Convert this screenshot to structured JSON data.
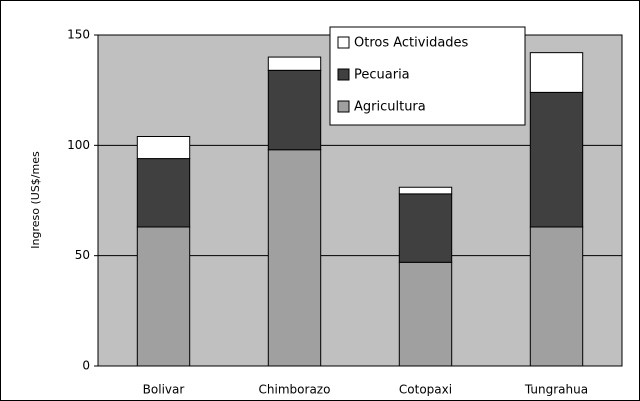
{
  "chart_data": {
    "type": "stacked_bar",
    "y_label": "Ingreso (US$/mes",
    "categories": [
      "Bolivar",
      "Chimborazo",
      "Cotopaxi",
      "Tungrahua"
    ],
    "series": [
      {
        "name": "Agricultura",
        "color": "#a0a0a0",
        "values": [
          63,
          98,
          47,
          63
        ]
      },
      {
        "name": "Pecuaria",
        "color": "#404040",
        "values": [
          31,
          36,
          31,
          61
        ]
      },
      {
        "name": "Otros Actividades",
        "color": "#ffffff",
        "values": [
          10,
          6,
          3,
          18
        ]
      }
    ],
    "ylim": [
      0,
      150
    ],
    "yticks": [
      0,
      50,
      100,
      150
    ],
    "grid": true,
    "plot_background": "#c0c0c0"
  }
}
